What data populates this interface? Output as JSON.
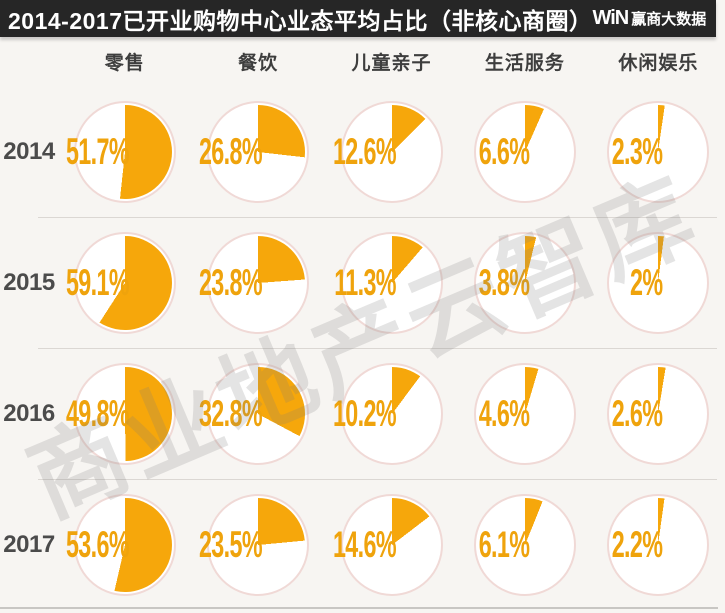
{
  "title": "2014-2017已开业购物中心业态平均占比（非核心商圈）",
  "logo": {
    "mark": "WiN",
    "name": "赢商大数据"
  },
  "watermark": "商业地产云智库",
  "colors": {
    "accent_orange": "#F6A70B",
    "label_orange": "#EFA30C",
    "titlebar_bg": "#262626",
    "circle_border": "#F0D9D6",
    "page_bg": "#F7F5F2"
  },
  "chart_data": {
    "type": "pie",
    "title": "2014-2017已开业购物中心业态平均占比（非核心商圈）",
    "layout": "grid: 4 year rows x 5 category columns of mini pie charts; each slice starts at 12 o'clock and sweeps clockwise; legend none; values shown as orange labels left of each pie center",
    "unit": "%",
    "categories": [
      "零售",
      "餐饮",
      "儿童亲子",
      "生活服务",
      "休闲娱乐"
    ],
    "series": [
      {
        "name": "2014",
        "values": [
          51.7,
          26.8,
          12.6,
          6.6,
          2.3
        ],
        "labels": [
          "51.7%",
          "26.8%",
          "12.6%",
          "6.6%",
          "2.3%"
        ]
      },
      {
        "name": "2015",
        "values": [
          59.1,
          23.8,
          11.3,
          3.8,
          2
        ],
        "labels": [
          "59.1%",
          "23.8%",
          "11.3%",
          "3.8%",
          "2%"
        ]
      },
      {
        "name": "2016",
        "values": [
          49.8,
          32.8,
          10.2,
          4.6,
          2.6
        ],
        "labels": [
          "49.8%",
          "32.8%",
          "10.2%",
          "4.6%",
          "2.6%"
        ]
      },
      {
        "name": "2017",
        "values": [
          53.6,
          23.5,
          14.6,
          6.1,
          2.2
        ],
        "labels": [
          "53.6%",
          "23.5%",
          "14.6%",
          "6.1%",
          "2.2%"
        ]
      }
    ]
  }
}
